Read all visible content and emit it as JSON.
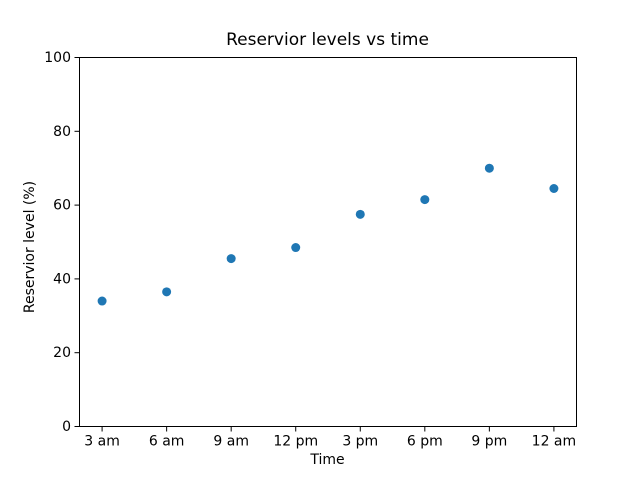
{
  "chart_data": {
    "type": "scatter",
    "title": "Reservior levels vs time",
    "xlabel": "Time",
    "ylabel": "Reservior level (%)",
    "categories": [
      "3 am",
      "6 am",
      "9 am",
      "12 pm",
      "3 pm",
      "6 pm",
      "9 pm",
      "12 am"
    ],
    "values": [
      34,
      36.5,
      45.5,
      48.5,
      57.5,
      61.5,
      70,
      64.5
    ],
    "ylim": [
      0,
      100
    ],
    "yticks": [
      0,
      20,
      40,
      60,
      80,
      100
    ],
    "grid": false,
    "legend": false,
    "marker_color": "#1f77b4",
    "axes_color": "#000000",
    "text_color": "#000000",
    "background_color": "#ffffff"
  }
}
